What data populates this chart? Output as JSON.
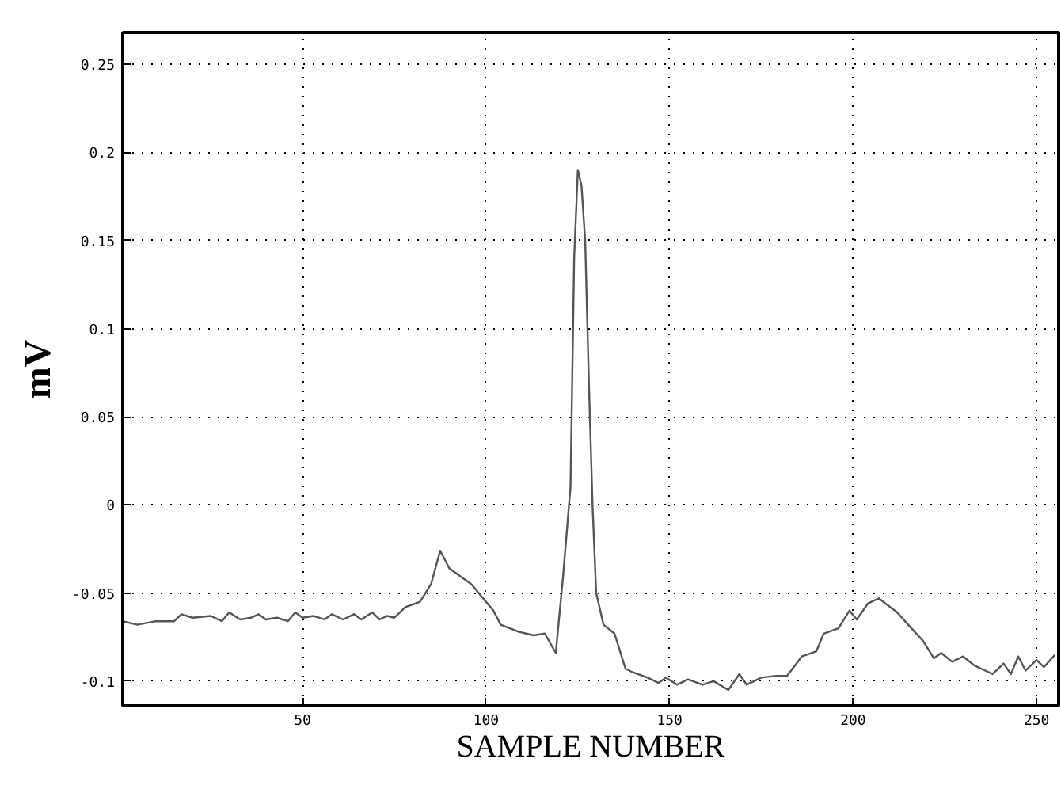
{
  "chart_data": {
    "type": "line",
    "xlabel": "SAMPLE NUMBER",
    "ylabel": "mV",
    "x": [
      1,
      5,
      10,
      15,
      17,
      20,
      25,
      28,
      30,
      33,
      36,
      38,
      40,
      43,
      46,
      48,
      50,
      53,
      56,
      58,
      61,
      64,
      66,
      69,
      71,
      73,
      75,
      78,
      82,
      85,
      87.5,
      90,
      96,
      102,
      104,
      109,
      113,
      116,
      119,
      121,
      123,
      124,
      125,
      126,
      127,
      128,
      129,
      130,
      132,
      135,
      138,
      140,
      144,
      147,
      149,
      152,
      155,
      159,
      162,
      166,
      169,
      171,
      175,
      179,
      182,
      186,
      190,
      192,
      196,
      199,
      201,
      204,
      207,
      212,
      215,
      219,
      222,
      224,
      227,
      230,
      233,
      235,
      238,
      241,
      243,
      245,
      247,
      250,
      252,
      255
    ],
    "series": [
      {
        "color": "#555555",
        "values": [
          -0.066,
          -0.068,
          -0.066,
          -0.066,
          -0.062,
          -0.064,
          -0.063,
          -0.066,
          -0.061,
          -0.065,
          -0.064,
          -0.062,
          -0.065,
          -0.064,
          -0.066,
          -0.061,
          -0.064,
          -0.063,
          -0.065,
          -0.062,
          -0.065,
          -0.062,
          -0.065,
          -0.061,
          -0.065,
          -0.063,
          -0.064,
          -0.058,
          -0.055,
          -0.045,
          -0.026,
          -0.036,
          -0.045,
          -0.06,
          -0.068,
          -0.072,
          -0.074,
          -0.073,
          -0.084,
          -0.04,
          0.01,
          0.14,
          0.19,
          0.181,
          0.15,
          0.07,
          0.0,
          -0.05,
          -0.068,
          -0.073,
          -0.093,
          -0.095,
          -0.098,
          -0.101,
          -0.098,
          -0.102,
          -0.099,
          -0.102,
          -0.1,
          -0.105,
          -0.096,
          -0.102,
          -0.098,
          -0.097,
          -0.097,
          -0.086,
          -0.083,
          -0.073,
          -0.07,
          -0.06,
          -0.065,
          -0.056,
          -0.053,
          -0.061,
          -0.068,
          -0.077,
          -0.087,
          -0.084,
          -0.089,
          -0.086,
          -0.091,
          -0.093,
          -0.096,
          -0.09,
          -0.096,
          -0.086,
          -0.094,
          -0.088,
          -0.092,
          -0.085
        ]
      }
    ],
    "xlim": [
      1,
      256
    ],
    "ylim": [
      -0.114,
      0.268
    ],
    "xticks": [
      50,
      100,
      150,
      200,
      250
    ],
    "yticks": [
      -0.1,
      -0.05,
      0,
      0.05,
      0.1,
      0.15,
      0.2,
      0.25
    ],
    "grid": true
  }
}
